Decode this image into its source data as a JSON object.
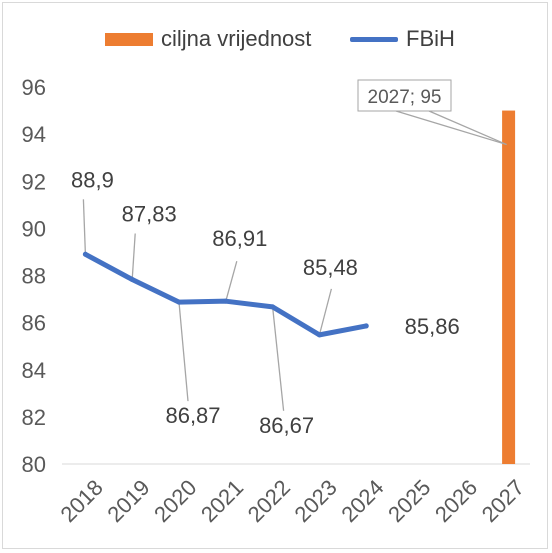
{
  "chart_data": {
    "type": "line",
    "categories": [
      "2018",
      "2019",
      "2020",
      "2021",
      "2022",
      "2023",
      "2024",
      "2025",
      "2026",
      "2027"
    ],
    "series": [
      {
        "name": "ciljna vrijednost",
        "kind": "bar",
        "color": "#ed7d31",
        "values": [
          null,
          null,
          null,
          null,
          null,
          null,
          null,
          null,
          null,
          95
        ]
      },
      {
        "name": "FBiH",
        "kind": "line",
        "color": "#4472c4",
        "values": [
          88.9,
          87.83,
          86.87,
          86.91,
          86.67,
          85.48,
          85.86,
          null,
          null,
          null
        ]
      }
    ],
    "data_labels": [
      "88,9",
      "87,83",
      "86,87",
      "86,91",
      "86,67",
      "85,48",
      "85,86"
    ],
    "bar_label": "2027; 95",
    "ylim": [
      80,
      96
    ],
    "yticks": [
      "80",
      "82",
      "84",
      "86",
      "88",
      "90",
      "92",
      "94",
      "96"
    ],
    "grid": false,
    "legend_position": "top"
  }
}
